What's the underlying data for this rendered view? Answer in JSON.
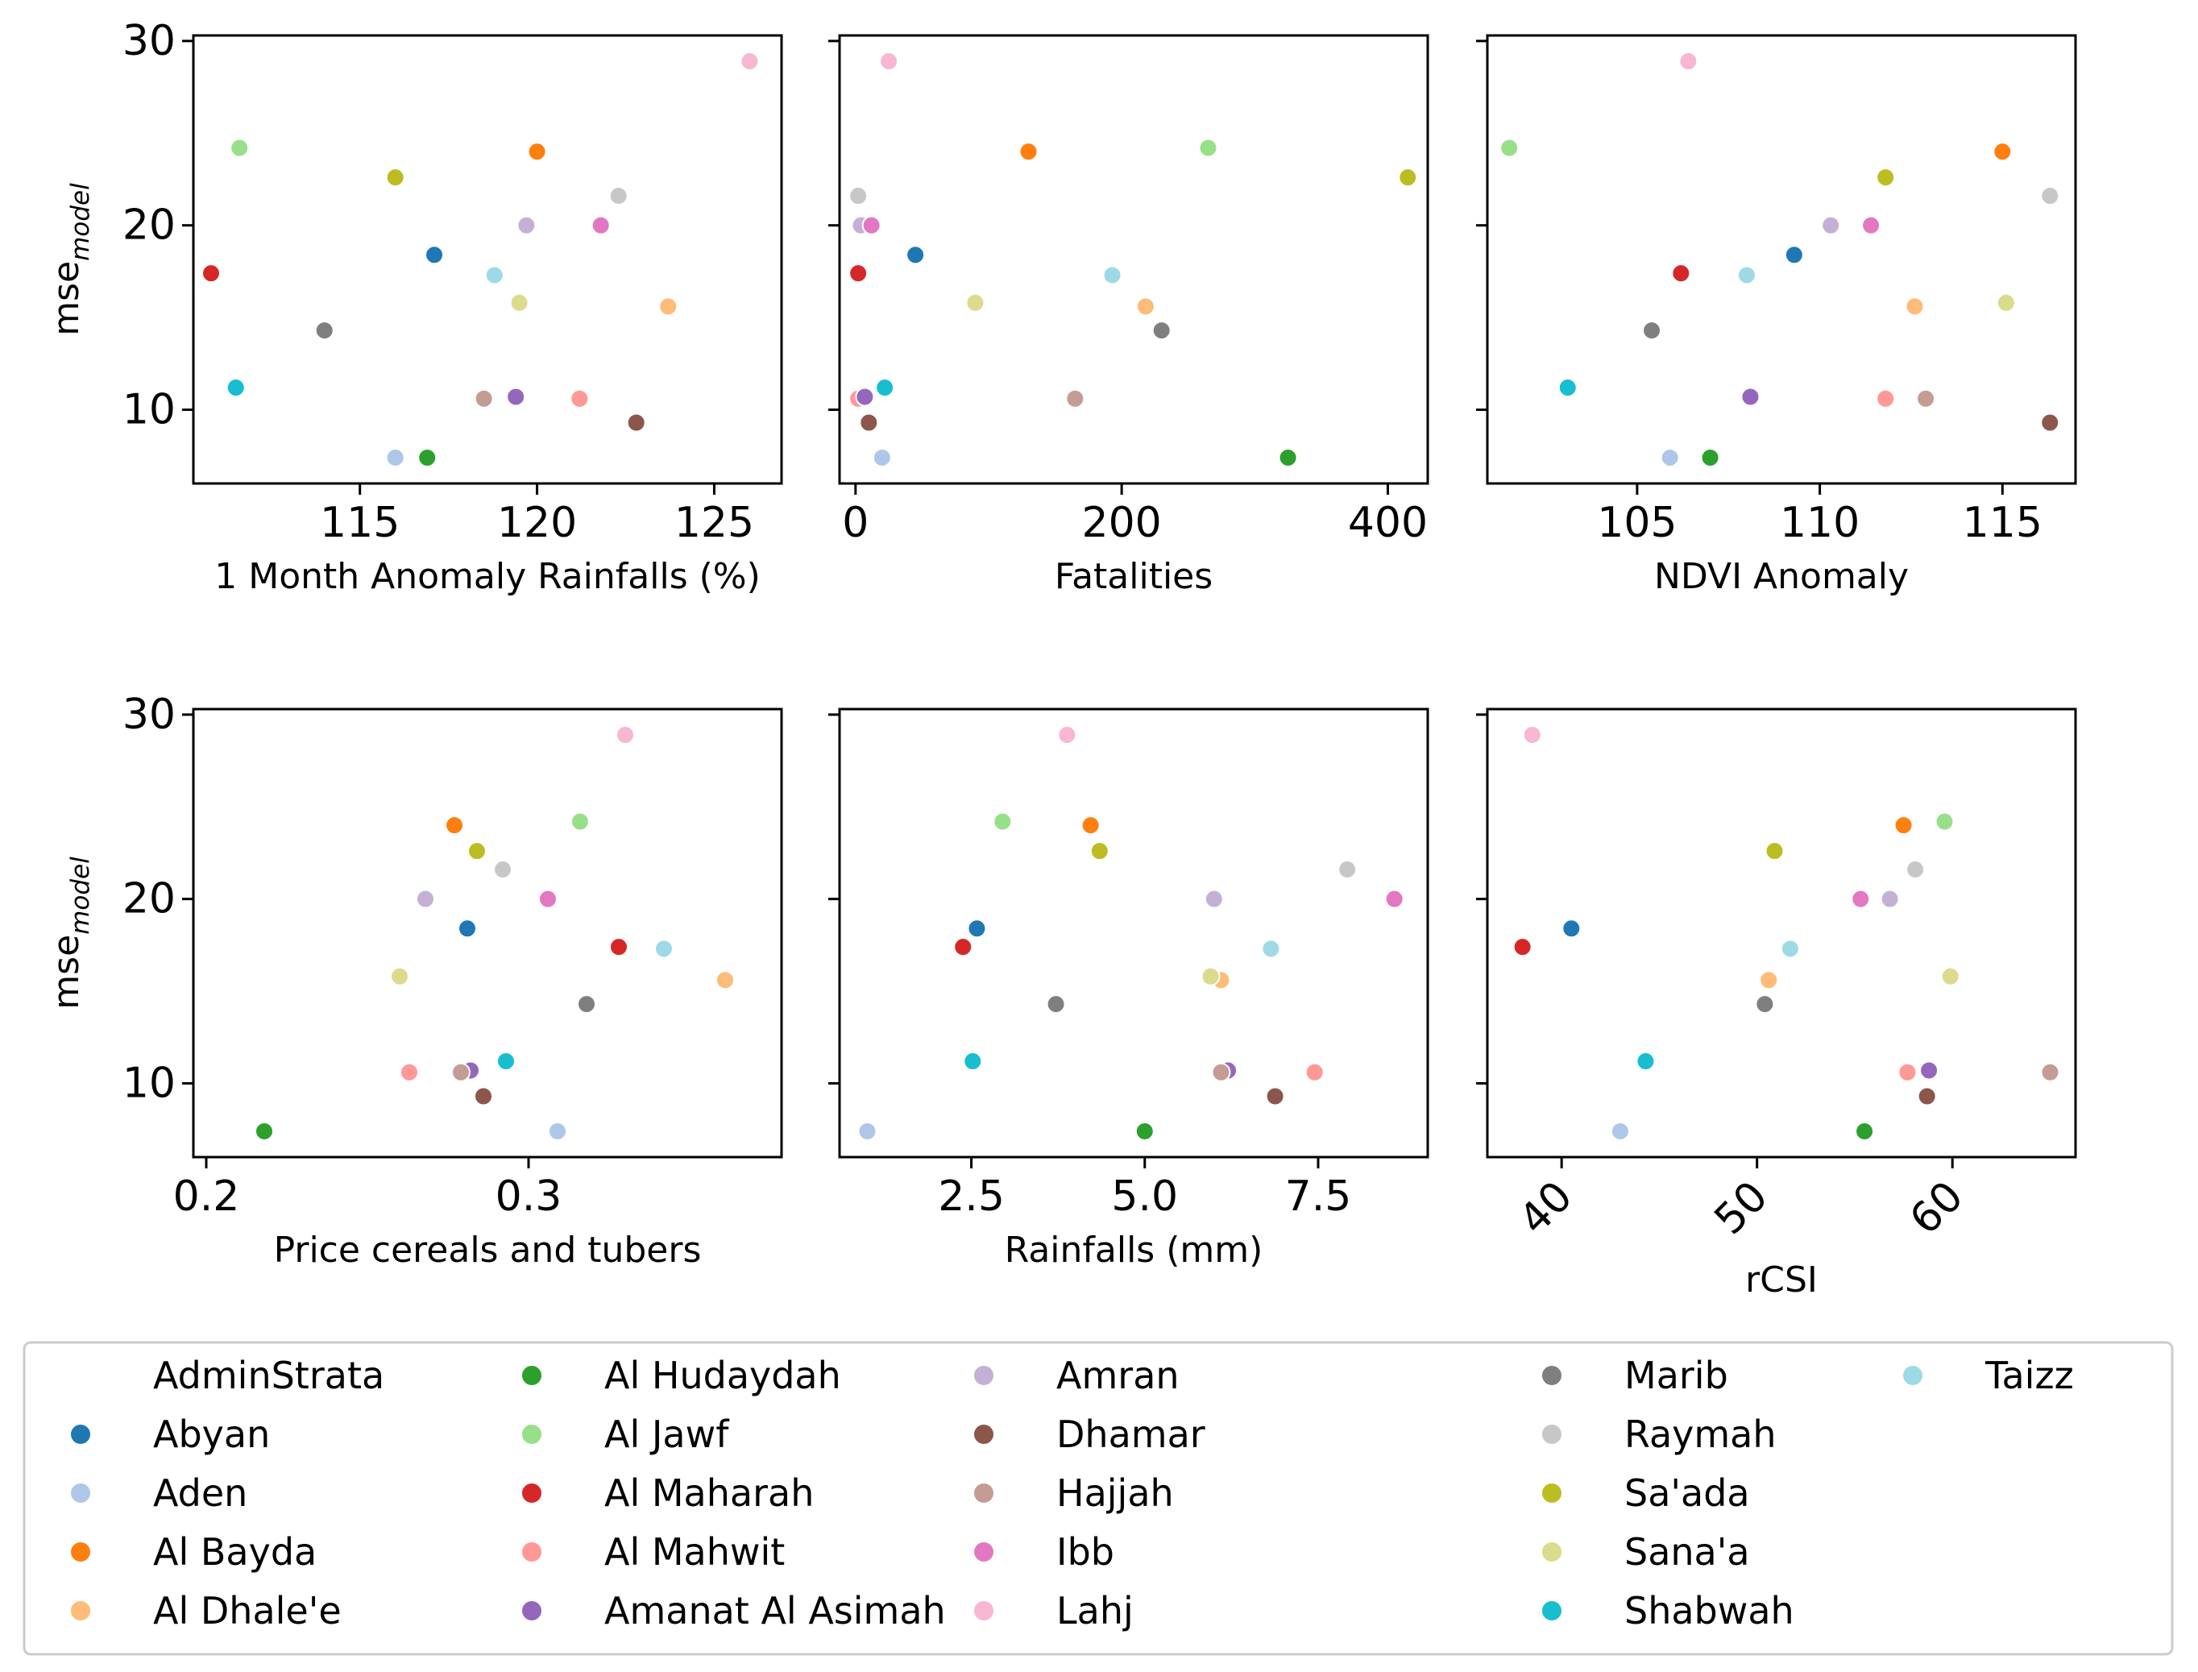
{
  "chart_data": {
    "type": "scatter",
    "y_label": "mse",
    "y_label_subscript": "model",
    "y_ticks": [
      10,
      20,
      30
    ],
    "y_range": [
      6,
      30.3
    ],
    "legend": {
      "title": "AdminStrata",
      "entries": [
        {
          "name": "Abyan",
          "color": "#1f77b4"
        },
        {
          "name": "Aden",
          "color": "#aec7e8"
        },
        {
          "name": "Al Bayda",
          "color": "#ff7f0e"
        },
        {
          "name": "Al Dhale'e",
          "color": "#ffbb78"
        },
        {
          "name": "Al Hudaydah",
          "color": "#2ca02c"
        },
        {
          "name": "Al Jawf",
          "color": "#98df8a"
        },
        {
          "name": "Al Maharah",
          "color": "#d62728"
        },
        {
          "name": "Al Mahwit",
          "color": "#ff9896"
        },
        {
          "name": "Amanat Al Asimah",
          "color": "#9467bd"
        },
        {
          "name": "Amran",
          "color": "#c5b0d5"
        },
        {
          "name": "Dhamar",
          "color": "#8c564b"
        },
        {
          "name": "Hajjah",
          "color": "#c49c94"
        },
        {
          "name": "Ibb",
          "color": "#e377c2"
        },
        {
          "name": "Lahj",
          "color": "#f7b6d2"
        },
        {
          "name": "Marib",
          "color": "#7f7f7f"
        },
        {
          "name": "Raymah",
          "color": "#c7c7c7"
        },
        {
          "name": "Sa'ada",
          "color": "#bcbd22"
        },
        {
          "name": "Sana'a",
          "color": "#dbdb8d"
        },
        {
          "name": "Shabwah",
          "color": "#17becf"
        },
        {
          "name": "Taizz",
          "color": "#9edae5"
        }
      ]
    },
    "mse_values": {
      "Abyan": 18.4,
      "Aden": 7.4,
      "Al Bayda": 24.0,
      "Al Dhale'e": 15.6,
      "Al Hudaydah": 7.4,
      "Al Jawf": 24.2,
      "Al Maharah": 17.4,
      "Al Mahwit": 10.6,
      "Amanat Al Asimah": 10.7,
      "Amran": 20.0,
      "Dhamar": 9.3,
      "Hajjah": 10.6,
      "Ibb": 20.0,
      "Lahj": 28.9,
      "Marib": 14.3,
      "Raymah": 21.6,
      "Sa'ada": 22.6,
      "Sana'a": 15.8,
      "Shabwah": 11.2,
      "Taizz": 17.3
    },
    "panels": [
      {
        "xlabel": "1 Month Anomaly Rainfalls (%)",
        "x_ticks": [
          115,
          120,
          125
        ],
        "x_tick_labels": [
          "115",
          "120",
          "125"
        ],
        "x_range": [
          110.3,
          126.9
        ],
        "x_tick_rotation": 0,
        "x_values": {
          "Abyan": 117.1,
          "Aden": 116.0,
          "Al Bayda": 120.0,
          "Al Dhale'e": 123.7,
          "Al Hudaydah": 116.9,
          "Al Jawf": 111.6,
          "Al Maharah": 110.8,
          "Al Mahwit": 121.2,
          "Amanat Al Asimah": 119.4,
          "Amran": 119.7,
          "Dhamar": 122.8,
          "Hajjah": 118.5,
          "Ibb": 121.8,
          "Lahj": 126.0,
          "Marib": 114.0,
          "Raymah": 122.3,
          "Sa'ada": 116.0,
          "Sana'a": 119.5,
          "Shabwah": 111.5,
          "Taizz": 118.8
        }
      },
      {
        "xlabel": "Fatalities",
        "x_ticks": [
          0,
          200,
          400
        ],
        "x_tick_labels": [
          "0",
          "200",
          "400"
        ],
        "x_range": [
          -12,
          430
        ],
        "x_tick_rotation": 0,
        "x_values": {
          "Abyan": 45,
          "Aden": 20,
          "Al Bayda": 130,
          "Al Dhale'e": 218,
          "Al Hudaydah": 325,
          "Al Jawf": 265,
          "Al Maharah": 2,
          "Al Mahwit": 2,
          "Amanat Al Asimah": 7,
          "Amran": 4,
          "Dhamar": 10,
          "Hajjah": 165,
          "Ibb": 12,
          "Lahj": 25,
          "Marib": 230,
          "Raymah": 2,
          "Sa'ada": 415,
          "Sana'a": 90,
          "Shabwah": 22,
          "Taizz": 193
        }
      },
      {
        "xlabel": "NDVI Anomaly",
        "x_ticks": [
          105,
          110,
          115
        ],
        "x_tick_labels": [
          "105",
          "110",
          "115"
        ],
        "x_range": [
          100.9,
          117.0
        ],
        "x_tick_rotation": 0,
        "x_values": {
          "Abyan": 109.3,
          "Aden": 105.9,
          "Al Bayda": 115.0,
          "Al Dhale'e": 112.6,
          "Al Hudaydah": 107.0,
          "Al Jawf": 101.5,
          "Al Maharah": 106.2,
          "Al Mahwit": 111.8,
          "Amanat Al Asimah": 108.1,
          "Amran": 110.3,
          "Dhamar": 116.3,
          "Hajjah": 112.9,
          "Ibb": 111.4,
          "Lahj": 106.4,
          "Marib": 105.4,
          "Raymah": 116.3,
          "Sa'ada": 111.8,
          "Sana'a": 115.1,
          "Shabwah": 103.1,
          "Taizz": 108.0
        }
      },
      {
        "xlabel": "Price cereals and tubers",
        "x_ticks": [
          0.2,
          0.3
        ],
        "x_tick_labels": [
          "0.2",
          "0.3"
        ],
        "x_range": [
          0.196,
          0.3785
        ],
        "x_tick_rotation": 0,
        "x_values": {
          "Abyan": 0.281,
          "Aden": 0.309,
          "Al Bayda": 0.277,
          "Al Dhale'e": 0.361,
          "Al Hudaydah": 0.218,
          "Al Jawf": 0.316,
          "Al Maharah": 0.328,
          "Al Mahwit": 0.263,
          "Amanat Al Asimah": 0.282,
          "Amran": 0.268,
          "Dhamar": 0.286,
          "Hajjah": 0.279,
          "Ibb": 0.306,
          "Lahj": 0.33,
          "Marib": 0.318,
          "Raymah": 0.292,
          "Sa'ada": 0.284,
          "Sana'a": 0.26,
          "Shabwah": 0.293,
          "Taizz": 0.342
        }
      },
      {
        "xlabel": "Rainfalls (mm)",
        "x_ticks": [
          2.5,
          5.0,
          7.5
        ],
        "x_tick_labels": [
          "2.5",
          "5.0",
          "7.5"
        ],
        "x_range": [
          0.6,
          9.08
        ],
        "x_tick_rotation": 0,
        "x_values": {
          "Abyan": 2.58,
          "Aden": 1.0,
          "Al Bayda": 4.22,
          "Al Dhale'e": 6.1,
          "Al Hudaydah": 5.0,
          "Al Jawf": 2.95,
          "Al Maharah": 2.38,
          "Al Mahwit": 7.45,
          "Amanat Al Asimah": 6.2,
          "Amran": 6.0,
          "Dhamar": 6.88,
          "Hajjah": 6.1,
          "Ibb": 8.6,
          "Lahj": 3.88,
          "Marib": 3.72,
          "Raymah": 7.92,
          "Sa'ada": 4.35,
          "Sana'a": 5.95,
          "Shabwah": 2.52,
          "Taizz": 6.82
        }
      },
      {
        "xlabel": "rCSI",
        "x_ticks": [
          40,
          50,
          60
        ],
        "x_tick_labels": [
          "40",
          "50",
          "60"
        ],
        "x_range": [
          36.2,
          66.3
        ],
        "x_tick_rotation": -45,
        "x_values": {
          "Abyan": 40.5,
          "Aden": 43.0,
          "Al Bayda": 57.5,
          "Al Dhale'e": 50.6,
          "Al Hudaydah": 55.5,
          "Al Jawf": 59.6,
          "Al Maharah": 38.0,
          "Al Mahwit": 57.7,
          "Amanat Al Asimah": 58.8,
          "Amran": 56.8,
          "Dhamar": 58.7,
          "Hajjah": 65.0,
          "Ibb": 55.3,
          "Lahj": 38.5,
          "Marib": 50.4,
          "Raymah": 58.1,
          "Sa'ada": 50.9,
          "Sana'a": 59.9,
          "Shabwah": 44.3,
          "Taizz": 51.7
        }
      }
    ]
  }
}
